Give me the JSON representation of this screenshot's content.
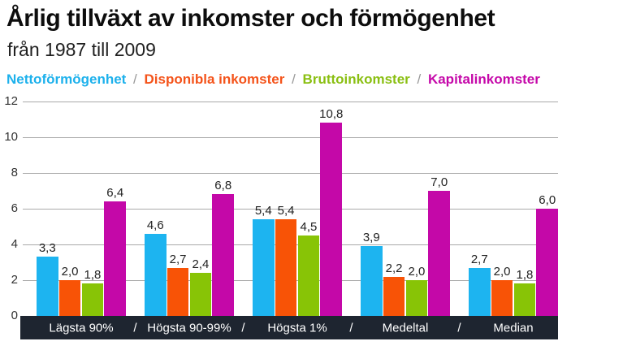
{
  "header": {
    "title": "Årlig tillväxt av inkomster och förmögenhet",
    "subtitle": "från 1987 till 2009"
  },
  "legend": {
    "separator": "/",
    "separator_color": "#999999",
    "items": [
      {
        "label": "Nettoförmögenhet",
        "color": "#1db1ec"
      },
      {
        "label": "Disponibla inkomster",
        "color": "#f4531a"
      },
      {
        "label": "Bruttoinkomster",
        "color": "#8abf12"
      },
      {
        "label": "Kapitalinkomster",
        "color": "#c508a9"
      }
    ]
  },
  "chart_data": {
    "type": "bar",
    "title": "Årlig tillväxt av inkomster och förmögenhet",
    "subtitle": "från 1987 till 2009",
    "categories": [
      "Lägsta 90%",
      "Högsta 90-99%",
      "Högsta 1%",
      "Medeltal",
      "Median"
    ],
    "series": [
      {
        "name": "Nettoförmögenhet",
        "color": "#1db4f0",
        "values": [
          3.3,
          4.6,
          5.4,
          3.9,
          2.7
        ]
      },
      {
        "name": "Disponibla inkomster",
        "color": "#f85306",
        "values": [
          2.0,
          2.7,
          5.4,
          2.2,
          2.0
        ]
      },
      {
        "name": "Bruttoinkomster",
        "color": "#88c406",
        "values": [
          1.8,
          2.4,
          4.5,
          2.0,
          1.8
        ]
      },
      {
        "name": "Kapitalinkomster",
        "color": "#c408a8",
        "values": [
          6.4,
          6.8,
          10.8,
          7.0,
          6.0
        ]
      }
    ],
    "ylim": [
      0,
      12
    ],
    "yticks": [
      0,
      2,
      4,
      6,
      8,
      10,
      12
    ],
    "grid": true,
    "value_labels": true,
    "decimal_separator": ",",
    "legend_position": "top",
    "xaxis_label_separator": "/"
  },
  "colors": {
    "grid": "#aaaaaa",
    "ytick_text": "#333333",
    "value_label_text": "#222222",
    "xaxis_band_bg": "#1e2530",
    "xaxis_band_text": "#ffffff"
  }
}
